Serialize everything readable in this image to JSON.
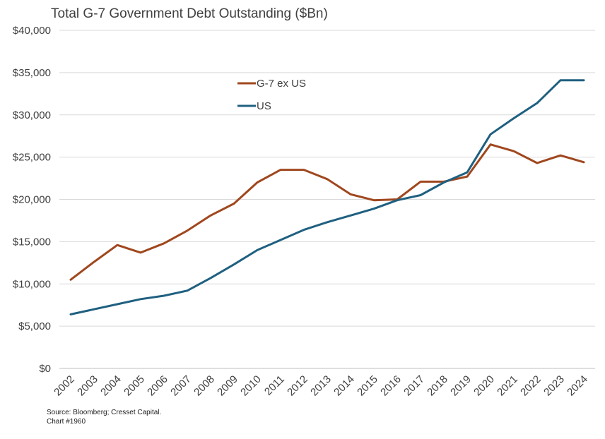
{
  "chart_data": {
    "type": "line",
    "title": "Total G-7 Government Debt Outstanding ($Bn)",
    "xlabel": "",
    "ylabel": "",
    "ylim": [
      0,
      40000
    ],
    "yticks": [
      "$0",
      "$5,000",
      "$10,000",
      "$15,000",
      "$20,000",
      "$25,000",
      "$30,000",
      "$35,000",
      "$40,000"
    ],
    "categories": [
      "2002",
      "2003",
      "2004",
      "2005",
      "2006",
      "2007",
      "2008",
      "2009",
      "2010",
      "2011",
      "2012",
      "2013",
      "2014",
      "2015",
      "2016",
      "2017",
      "2018",
      "2019",
      "2020",
      "2021",
      "2022",
      "2023",
      "2024"
    ],
    "series": [
      {
        "name": "G-7 ex US",
        "color": "#A0471E",
        "values": [
          10500,
          12600,
          14600,
          13700,
          14800,
          16300,
          18100,
          19500,
          22000,
          23500,
          23500,
          22400,
          20600,
          19900,
          20000,
          22100,
          22100,
          22700,
          26500,
          25700,
          24300,
          25200,
          24400
        ]
      },
      {
        "name": "US",
        "color": "#1F6080",
        "values": [
          6400,
          7000,
          7600,
          8200,
          8600,
          9200,
          10700,
          12300,
          14000,
          15200,
          16400,
          17300,
          18100,
          18900,
          19900,
          20500,
          22000,
          23200,
          27700,
          29600,
          31400,
          34100,
          34100
        ]
      }
    ],
    "grid": true,
    "legend": "upper-center"
  },
  "source_lines": [
    "Source: Bloomberg; Cresset Capital.",
    "Chart #1960"
  ]
}
